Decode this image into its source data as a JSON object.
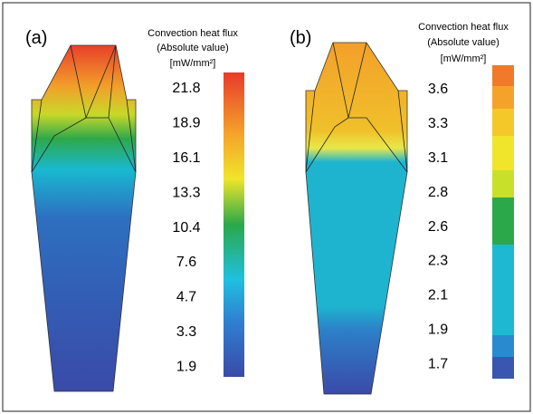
{
  "panels": [
    {
      "label": "(a)",
      "legend": {
        "title": [
          "Convection heat flux",
          "(Absolute value)"
        ],
        "unit": "[mW/mm²]",
        "ticks": [
          "21.8",
          "18.9",
          "16.1",
          "13.3",
          "10.4",
          "7.6",
          "4.7",
          "3.3",
          "1.9"
        ]
      }
    },
    {
      "label": "(b)",
      "legend": {
        "title": [
          "Convection heat flux",
          "(Absolute value)"
        ],
        "unit": "[mW/mm²]",
        "ticks": [
          "3.6",
          "3.3",
          "3.1",
          "2.8",
          "2.6",
          "2.3",
          "2.1",
          "1.9",
          "1.7"
        ]
      }
    }
  ]
}
